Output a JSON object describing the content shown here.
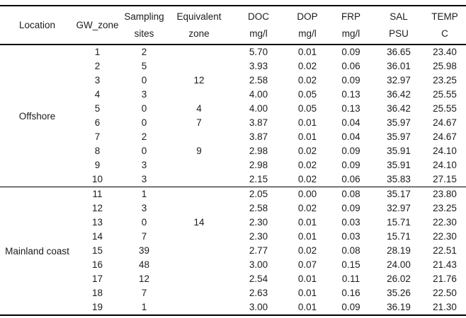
{
  "table": {
    "columns": [
      {
        "id": "location",
        "line1": "Location",
        "line2": ""
      },
      {
        "id": "gw_zone",
        "line1": "GW_zone",
        "line2": ""
      },
      {
        "id": "sampling_sites",
        "line1": "Sampling",
        "line2": "sites"
      },
      {
        "id": "equivalent_zone",
        "line1": "Equivalent",
        "line2": "zone"
      },
      {
        "id": "doc",
        "line1": "DOC",
        "line2": "mg/l"
      },
      {
        "id": "dop",
        "line1": "DOP",
        "line2": "mg/l"
      },
      {
        "id": "frp",
        "line1": "FRP",
        "line2": "mg/l"
      },
      {
        "id": "sal",
        "line1": "SAL",
        "line2": "PSU"
      },
      {
        "id": "temp",
        "line1": "TEMP",
        "line2": "C"
      }
    ],
    "sections": [
      {
        "location": "Offshore",
        "rows": [
          {
            "gw_zone": "1",
            "sampling_sites": "2",
            "equivalent_zone": "",
            "doc": "5.70",
            "dop": "0.01",
            "frp": "0.09",
            "sal": "36.65",
            "temp": "23.40"
          },
          {
            "gw_zone": "2",
            "sampling_sites": "5",
            "equivalent_zone": "",
            "doc": "3.93",
            "dop": "0.02",
            "frp": "0.06",
            "sal": "36.01",
            "temp": "25.98"
          },
          {
            "gw_zone": "3",
            "sampling_sites": "0",
            "equivalent_zone": "12",
            "doc": "2.58",
            "dop": "0.02",
            "frp": "0.09",
            "sal": "32.97",
            "temp": "23.25"
          },
          {
            "gw_zone": "4",
            "sampling_sites": "3",
            "equivalent_zone": "",
            "doc": "4.00",
            "dop": "0.05",
            "frp": "0.13",
            "sal": "36.42",
            "temp": "25.55"
          },
          {
            "gw_zone": "5",
            "sampling_sites": "0",
            "equivalent_zone": "4",
            "doc": "4.00",
            "dop": "0.05",
            "frp": "0.13",
            "sal": "36.42",
            "temp": "25.55"
          },
          {
            "gw_zone": "6",
            "sampling_sites": "0",
            "equivalent_zone": "7",
            "doc": "3.87",
            "dop": "0.01",
            "frp": "0.04",
            "sal": "35.97",
            "temp": "24.67"
          },
          {
            "gw_zone": "7",
            "sampling_sites": "2",
            "equivalent_zone": "",
            "doc": "3.87",
            "dop": "0.01",
            "frp": "0.04",
            "sal": "35.97",
            "temp": "24.67"
          },
          {
            "gw_zone": "8",
            "sampling_sites": "0",
            "equivalent_zone": "9",
            "doc": "2.98",
            "dop": "0.02",
            "frp": "0.09",
            "sal": "35.91",
            "temp": "24.10"
          },
          {
            "gw_zone": "9",
            "sampling_sites": "3",
            "equivalent_zone": "",
            "doc": "2.98",
            "dop": "0.02",
            "frp": "0.09",
            "sal": "35.91",
            "temp": "24.10"
          },
          {
            "gw_zone": "10",
            "sampling_sites": "3",
            "equivalent_zone": "",
            "doc": "2.15",
            "dop": "0.02",
            "frp": "0.06",
            "sal": "35.83",
            "temp": "27.15"
          }
        ]
      },
      {
        "location": "Mainland coast",
        "rows": [
          {
            "gw_zone": "11",
            "sampling_sites": "1",
            "equivalent_zone": "",
            "doc": "2.05",
            "dop": "0.00",
            "frp": "0.08",
            "sal": "35.17",
            "temp": "23.80"
          },
          {
            "gw_zone": "12",
            "sampling_sites": "3",
            "equivalent_zone": "",
            "doc": "2.58",
            "dop": "0.02",
            "frp": "0.09",
            "sal": "32.97",
            "temp": "23.25"
          },
          {
            "gw_zone": "13",
            "sampling_sites": "0",
            "equivalent_zone": "14",
            "doc": "2.30",
            "dop": "0.01",
            "frp": "0.03",
            "sal": "15.71",
            "temp": "22.30"
          },
          {
            "gw_zone": "14",
            "sampling_sites": "7",
            "equivalent_zone": "",
            "doc": "2.30",
            "dop": "0.01",
            "frp": "0.03",
            "sal": "15.71",
            "temp": "22.30"
          },
          {
            "gw_zone": "15",
            "sampling_sites": "39",
            "equivalent_zone": "",
            "doc": "2.77",
            "dop": "0.02",
            "frp": "0.08",
            "sal": "28.19",
            "temp": "22.51"
          },
          {
            "gw_zone": "16",
            "sampling_sites": "48",
            "equivalent_zone": "",
            "doc": "3.00",
            "dop": "0.07",
            "frp": "0.15",
            "sal": "24.00",
            "temp": "21.43"
          },
          {
            "gw_zone": "17",
            "sampling_sites": "12",
            "equivalent_zone": "",
            "doc": "2.54",
            "dop": "0.01",
            "frp": "0.11",
            "sal": "26.02",
            "temp": "21.76"
          },
          {
            "gw_zone": "18",
            "sampling_sites": "7",
            "equivalent_zone": "",
            "doc": "2.63",
            "dop": "0.01",
            "frp": "0.16",
            "sal": "35.26",
            "temp": "22.50"
          },
          {
            "gw_zone": "19",
            "sampling_sites": "1",
            "equivalent_zone": "",
            "doc": "3.00",
            "dop": "0.01",
            "frp": "0.09",
            "sal": "36.19",
            "temp": "21.30"
          }
        ]
      }
    ]
  },
  "colors": {
    "text": "#1c1c1c",
    "rule": "#000000",
    "background": "#ffffff"
  }
}
